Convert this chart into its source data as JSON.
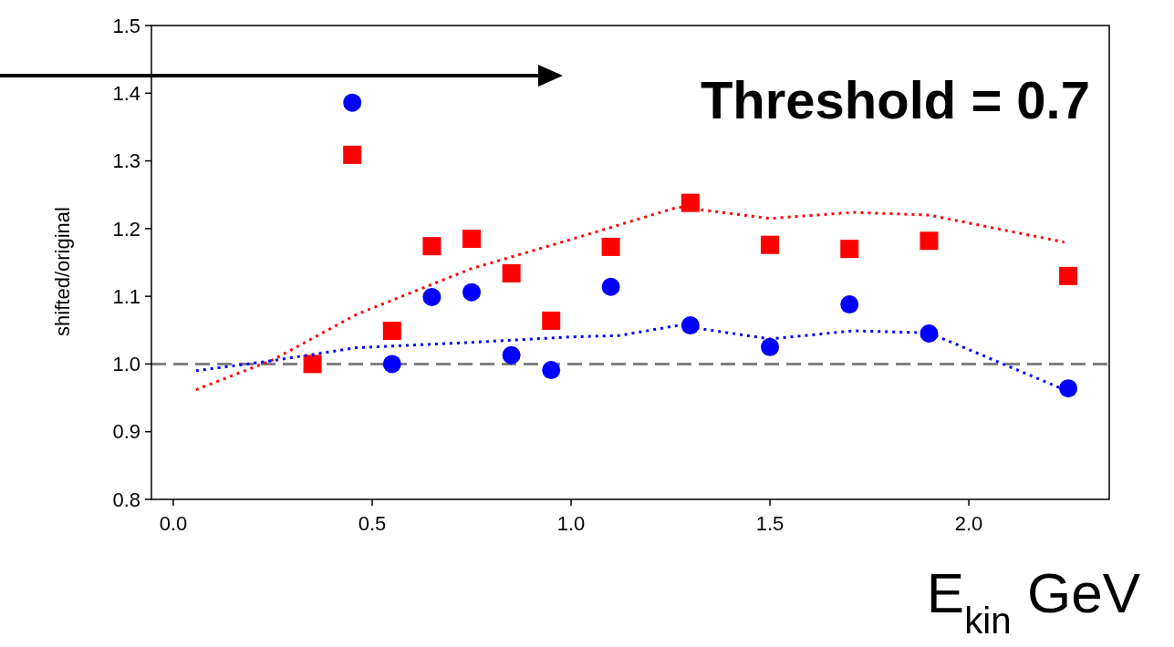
{
  "chart_data": {
    "type": "scatter",
    "xlabel": "E$_{kin}$ GeV",
    "ylabel": "shifted/original",
    "xlim": [
      -0.055,
      2.353
    ],
    "xticks": [
      {
        "value": 0,
        "label": "0.0"
      },
      0.5,
      {
        "value": 1,
        "label": "1.0"
      },
      1.5,
      {
        "value": 2,
        "label": "2.0"
      }
    ],
    "ylim": [
      0.8,
      1.5
    ],
    "yticks": [
      0.8,
      0.9,
      {
        "value": 1,
        "label": "1.0"
      },
      1.1,
      1.2,
      1.3,
      1.4,
      1.5
    ],
    "grid": false,
    "annotations": [
      "Threshold = 0.7"
    ],
    "ref_lines": [
      {
        "axis": "y",
        "value": 1,
        "color": "#808080",
        "line_style": "dashed"
      }
    ],
    "series": [
      {
        "marker": "circle",
        "color": "#0000ff",
        "x": [
          0.45,
          0.55,
          0.65,
          0.75,
          0.85,
          0.95,
          1.1,
          1.3,
          1.5,
          1.7,
          1.9,
          2.25
        ],
        "values": [
          1.386,
          1.0,
          1.099,
          1.106,
          1.013,
          0.991,
          1.114,
          1.057,
          1.025,
          1.088,
          1.045,
          0.964
        ]
      },
      {
        "marker": "square",
        "color": "#ff0000",
        "x": [
          0.35,
          0.45,
          0.55,
          0.65,
          0.75,
          0.85,
          0.95,
          1.1,
          1.3,
          1.5,
          1.7,
          1.9,
          2.25
        ],
        "values": [
          1.0,
          1.309,
          1.049,
          1.174,
          1.185,
          1.134,
          1.064,
          1.173,
          1.238,
          1.176,
          1.17,
          1.182,
          1.13
        ]
      },
      {
        "type": "line",
        "line_style": "dotted",
        "color": "#ff0000",
        "x": [
          0.057,
          0.25,
          0.46,
          0.75,
          1.0,
          1.27,
          1.5,
          1.71,
          1.9,
          2.24
        ],
        "values": [
          0.962,
          1.006,
          1.073,
          1.141,
          1.184,
          1.232,
          1.215,
          1.224,
          1.22,
          1.18
        ]
      },
      {
        "type": "line",
        "line_style": "dotted",
        "color": "#0000ff",
        "x": [
          0.057,
          0.25,
          0.46,
          0.75,
          1.0,
          1.12,
          1.27,
          1.5,
          1.71,
          1.9,
          2.24
        ],
        "values": [
          0.99,
          1.005,
          1.024,
          1.032,
          1.04,
          1.042,
          1.057,
          1.037,
          1.049,
          1.046,
          0.962
        ]
      }
    ]
  }
}
